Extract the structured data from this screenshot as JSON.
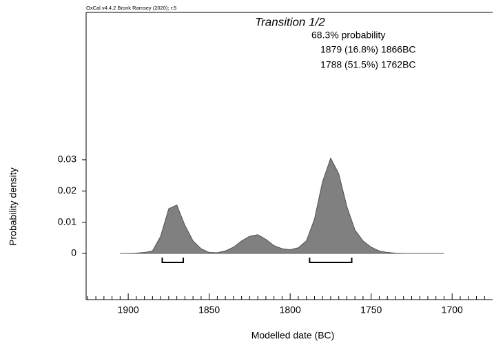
{
  "chart_data": {
    "type": "area",
    "header": "OxCal v4.4.2 Bronk Ramsey (2020); r:5",
    "title": "Transition 1/2",
    "probability_label": "68.3% probability",
    "ranges": [
      {
        "label": "1879 (16.8%) 1866BC",
        "from": 1879,
        "to": 1866
      },
      {
        "label": "1788 (51.5%) 1762BC",
        "from": 1788,
        "to": 1762
      }
    ],
    "xlabel": "Modelled date (BC)",
    "ylabel": "Probability density",
    "x": [
      1905,
      1900,
      1895,
      1890,
      1885,
      1880,
      1875,
      1870,
      1865,
      1860,
      1855,
      1850,
      1845,
      1840,
      1835,
      1830,
      1825,
      1820,
      1815,
      1810,
      1805,
      1800,
      1795,
      1790,
      1785,
      1780,
      1775,
      1770,
      1765,
      1760,
      1755,
      1750,
      1745,
      1740,
      1735,
      1730,
      1720,
      1710,
      1705
    ],
    "values": [
      0,
      0,
      0.0001,
      0.0003,
      0.0008,
      0.0055,
      0.0143,
      0.0155,
      0.009,
      0.004,
      0.0015,
      0.0003,
      0.0002,
      0.0008,
      0.002,
      0.004,
      0.0055,
      0.006,
      0.0045,
      0.0025,
      0.0015,
      0.0012,
      0.0018,
      0.004,
      0.011,
      0.023,
      0.0305,
      0.0255,
      0.015,
      0.0075,
      0.004,
      0.002,
      0.0008,
      0.0003,
      0.0001,
      0,
      0,
      0,
      0
    ],
    "color": "#808080",
    "xlim": [
      1926,
      1675
    ],
    "xticks": [
      1900,
      1850,
      1800,
      1750,
      1700
    ],
    "xminorticks": [
      1925,
      1920,
      1915,
      1910,
      1905,
      1895,
      1890,
      1885,
      1880,
      1875,
      1870,
      1865,
      1860,
      1855,
      1845,
      1840,
      1835,
      1830,
      1825,
      1820,
      1815,
      1810,
      1805,
      1795,
      1790,
      1785,
      1780,
      1775,
      1770,
      1765,
      1760,
      1755,
      1745,
      1740,
      1735,
      1730,
      1725,
      1720,
      1715,
      1710,
      1705,
      1695,
      1690,
      1685,
      1680
    ],
    "ylim": [
      -0.0148,
      0.0772
    ],
    "yticks": [
      0,
      0.01,
      0.02,
      0.03
    ]
  }
}
